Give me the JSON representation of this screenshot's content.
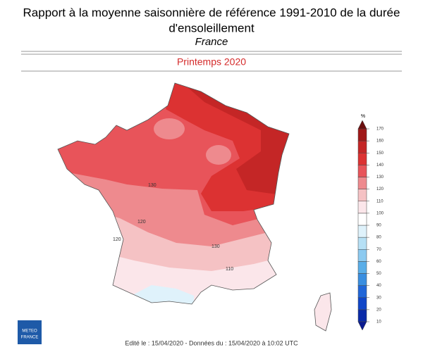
{
  "header": {
    "title": [
      "Rapport à la moyenne saisonnière de référence 1991-2010 de la durée",
      "d'ensoleillement"
    ],
    "region": "France",
    "period": "Printemps 2020"
  },
  "legend": {
    "unit": "%",
    "ticks": [
      10,
      20,
      30,
      40,
      50,
      60,
      70,
      80,
      90,
      100,
      110,
      120,
      130,
      140,
      150,
      160,
      170
    ],
    "colors": [
      "#0a1a90",
      "#0a2aa8",
      "#1046c8",
      "#2166d8",
      "#3a8ee0",
      "#5aaee8",
      "#8ccaf0",
      "#b6e0f5",
      "#dff2fb",
      "#ffffff",
      "#fbe6ea",
      "#f5c2c4",
      "#ee8a8e",
      "#e8545a",
      "#dc3232",
      "#c42626",
      "#a01818",
      "#6b0f0f"
    ]
  },
  "map": {
    "contour_labels": [
      "130",
      "120",
      "130",
      "110",
      "120"
    ]
  },
  "footer": {
    "credit": "Edité le : 15/04/2020 - Données du : 15/04/2020 à 10:02 UTC",
    "logo": [
      "METEO",
      "FRANCE"
    ]
  }
}
